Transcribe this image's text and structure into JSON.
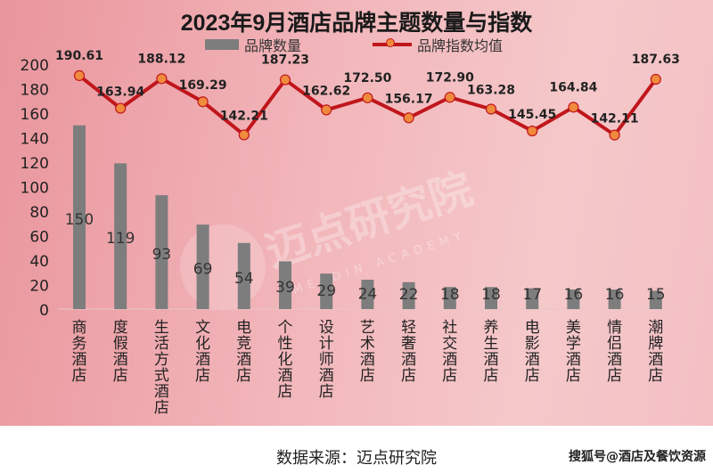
{
  "chart_data": {
    "type": "bar+line",
    "title": "2023年9月酒店品牌主题数量与指数",
    "categories": [
      "商务酒店",
      "度假酒店",
      "生活方式酒店",
      "文化酒店",
      "电竞酒店",
      "个性化酒店",
      "设计师酒店",
      "艺术酒店",
      "轻奢酒店",
      "社交酒店",
      "养生酒店",
      "电影酒店",
      "美学酒店",
      "情侣酒店",
      "潮牌酒店"
    ],
    "series": [
      {
        "name": "品牌数量",
        "type": "bar",
        "color": "#7d7d7d",
        "values": [
          150,
          119,
          93,
          69,
          54,
          39,
          29,
          24,
          22,
          18,
          18,
          17,
          16,
          16,
          15
        ],
        "labels": [
          "150",
          "119",
          "93",
          "69",
          "54",
          "39",
          "29",
          "24",
          "22",
          "18",
          "18",
          "17",
          "16",
          "16",
          "15"
        ]
      },
      {
        "name": "品牌指数均值",
        "type": "line",
        "color": "#c0161c",
        "marker_color": "#f08a3c",
        "values": [
          190.61,
          163.94,
          188.12,
          169.29,
          142.21,
          187.23,
          162.62,
          172.5,
          156.17,
          172.9,
          163.28,
          145.45,
          164.84,
          142.11,
          187.63
        ],
        "labels": [
          "190.61",
          "163.94",
          "188.12",
          "169.29",
          "142.21",
          "187.23",
          "162.62",
          "172.50",
          "156.17",
          "172.90",
          "163.28",
          "145.45",
          "164.84",
          "142.11",
          "187.63"
        ]
      }
    ],
    "yticks": [
      "0",
      "20",
      "40",
      "60",
      "80",
      "100",
      "120",
      "140",
      "160",
      "180",
      "200"
    ],
    "ylim": [
      0,
      200
    ],
    "grid": false,
    "legend": "top"
  },
  "watermark": {
    "text": "迈点研究院",
    "subtext": "MEADIN ACADEMY"
  },
  "footer": {
    "source": "数据来源：迈点研究院",
    "credit": "搜狐号@酒店及餐饮资源"
  }
}
